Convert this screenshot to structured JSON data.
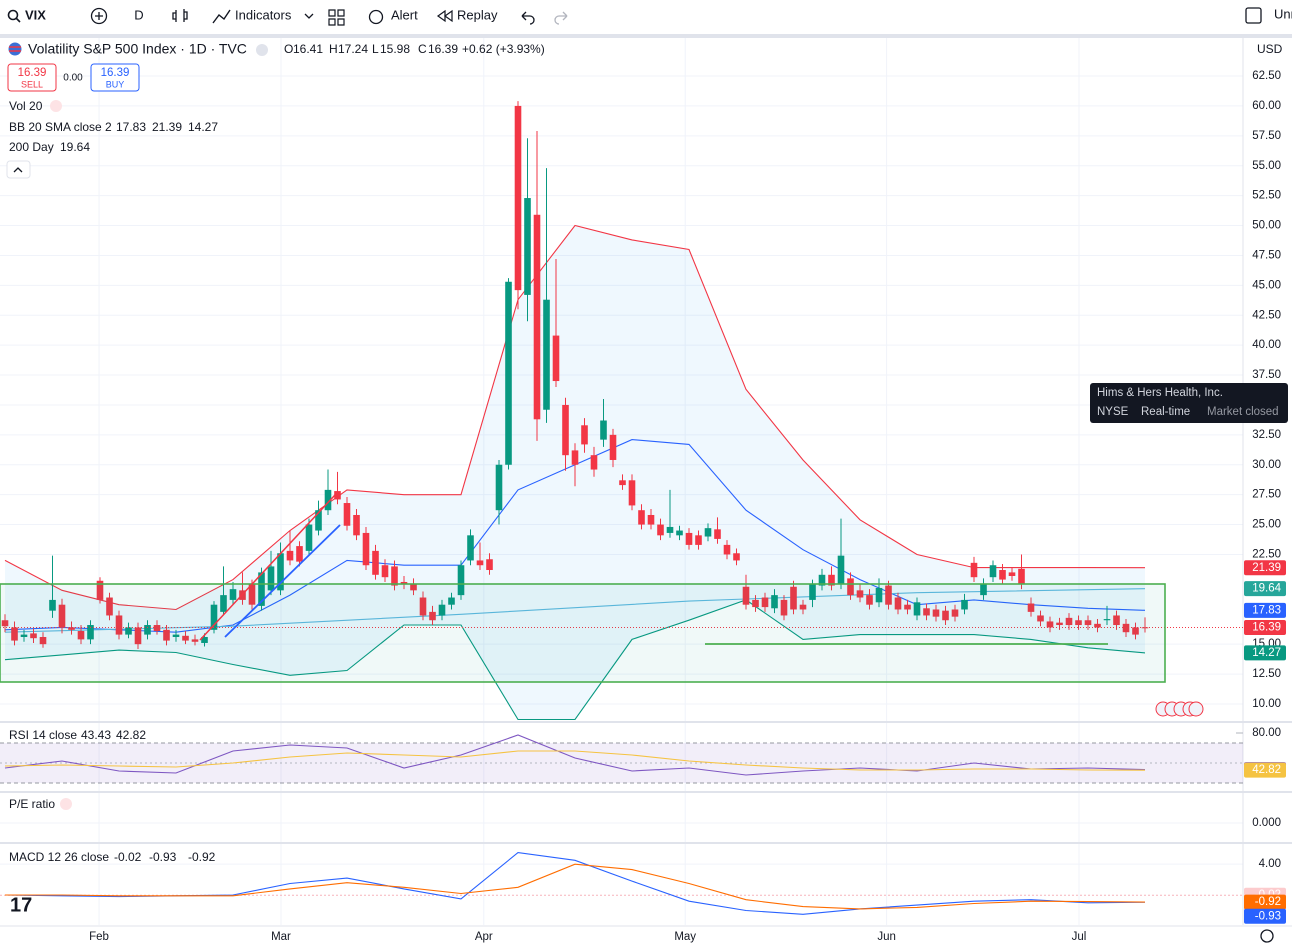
{
  "toolbar": {
    "symbol": "VIX",
    "interval": "D",
    "indicators": "Indicators",
    "alert": "Alert",
    "replay": "Replay",
    "layout": "Unn"
  },
  "legend": {
    "title": "Volatility S&P 500 Index · 1D · TVC",
    "letters": [
      "O",
      "H",
      "L",
      "C"
    ],
    "change": "+0.62 (+3.93%)",
    "sell": "SELL",
    "buy": "BUY",
    "spread": "0.00",
    "vol": "Vol 20",
    "bb": "BB 20 SMA close 2",
    "sma": "200 Day",
    "currency": "USD"
  },
  "tooltip": {
    "name": "Hims & Hers Health, Inc.",
    "exchange": "NYSE",
    "status": "Real-time",
    "market": "Market closed"
  },
  "chart_data": {
    "type": "candlestick",
    "up_color": "#089981",
    "down_color": "#f23645",
    "ohlc": [
      [
        17.0,
        17.5,
        16.0,
        16.5
      ],
      [
        16.4,
        16.9,
        14.9,
        15.3
      ],
      [
        15.6,
        16.2,
        15.2,
        15.8
      ],
      [
        15.9,
        16.3,
        15.1,
        15.5
      ],
      [
        15.6,
        16.0,
        14.7,
        15.0
      ],
      [
        17.8,
        22.4,
        17.2,
        18.7
      ],
      [
        18.3,
        18.8,
        15.9,
        16.4
      ],
      [
        16.4,
        16.9,
        15.8,
        16.2
      ],
      [
        16.1,
        16.6,
        15.0,
        15.4
      ],
      [
        15.4,
        17.0,
        15.0,
        16.6
      ],
      [
        20.3,
        20.6,
        18.4,
        18.7
      ],
      [
        18.9,
        19.3,
        17.0,
        17.4
      ],
      [
        17.4,
        17.8,
        15.4,
        15.8
      ],
      [
        15.8,
        16.8,
        15.5,
        16.4
      ],
      [
        16.4,
        16.8,
        14.6,
        15.0
      ],
      [
        15.8,
        17.0,
        15.4,
        16.6
      ],
      [
        16.6,
        17.0,
        15.8,
        16.1
      ],
      [
        16.2,
        16.6,
        14.9,
        15.3
      ],
      [
        15.6,
        16.2,
        15.2,
        15.8
      ],
      [
        15.7,
        16.1,
        15.0,
        15.3
      ],
      [
        15.4,
        15.8,
        14.9,
        15.2
      ],
      [
        15.1,
        15.9,
        14.8,
        15.6
      ],
      [
        16.2,
        18.6,
        15.9,
        18.3
      ],
      [
        17.7,
        21.5,
        17.4,
        19.1
      ],
      [
        18.7,
        20.2,
        18.3,
        19.6
      ],
      [
        19.5,
        21.0,
        18.3,
        18.7
      ],
      [
        20.0,
        20.4,
        17.9,
        18.3
      ],
      [
        18.2,
        21.4,
        17.8,
        21.0
      ],
      [
        19.5,
        22.8,
        19.1,
        21.5
      ],
      [
        19.5,
        23.5,
        19.1,
        22.6
      ],
      [
        22.8,
        24.5,
        21.6,
        22.0
      ],
      [
        23.2,
        23.6,
        21.5,
        21.9
      ],
      [
        22.8,
        25.5,
        22.4,
        25.0
      ],
      [
        24.5,
        27.0,
        24.1,
        26.2
      ],
      [
        26.2,
        29.6,
        25.8,
        27.9
      ],
      [
        27.8,
        29.4,
        26.7,
        27.1
      ],
      [
        26.8,
        27.3,
        24.5,
        24.9
      ],
      [
        25.8,
        26.3,
        23.7,
        24.1
      ],
      [
        24.3,
        24.8,
        21.2,
        21.6
      ],
      [
        22.8,
        23.3,
        20.4,
        20.8
      ],
      [
        21.6,
        22.1,
        20.2,
        20.6
      ],
      [
        21.5,
        22.0,
        19.5,
        19.9
      ],
      [
        20.2,
        20.7,
        19.6,
        20.0
      ],
      [
        20.0,
        20.5,
        19.1,
        19.5
      ],
      [
        18.9,
        19.4,
        17.0,
        17.4
      ],
      [
        17.7,
        18.2,
        16.6,
        17.0
      ],
      [
        17.4,
        18.7,
        17.0,
        18.3
      ],
      [
        18.3,
        19.3,
        17.9,
        18.9
      ],
      [
        19.1,
        22.0,
        18.7,
        21.6
      ],
      [
        22.0,
        24.6,
        21.6,
        24.1
      ],
      [
        22.0,
        23.5,
        21.2,
        21.6
      ],
      [
        22.1,
        22.6,
        20.8,
        21.2
      ],
      [
        26.2,
        30.4,
        25.0,
        30.0
      ],
      [
        30.0,
        45.6,
        29.6,
        45.3
      ],
      [
        60.0,
        60.4,
        43.0,
        44.6
      ],
      [
        44.2,
        57.3,
        42.0,
        52.3
      ],
      [
        50.9,
        57.9,
        32.0,
        33.8
      ],
      [
        34.6,
        54.8,
        33.5,
        43.8
      ],
      [
        40.8,
        47.2,
        36.5,
        37.0
      ],
      [
        35.0,
        35.6,
        29.5,
        30.8
      ],
      [
        31.2,
        31.8,
        28.2,
        30.0
      ],
      [
        33.3,
        33.9,
        31.0,
        31.7
      ],
      [
        30.8,
        31.5,
        29.0,
        29.6
      ],
      [
        32.1,
        35.5,
        31.5,
        33.7
      ],
      [
        32.5,
        33.0,
        29.8,
        30.4
      ],
      [
        28.7,
        29.2,
        27.9,
        28.3
      ],
      [
        28.7,
        29.2,
        26.2,
        26.6
      ],
      [
        26.2,
        26.7,
        24.6,
        25.0
      ],
      [
        25.8,
        26.3,
        24.6,
        25.0
      ],
      [
        25.0,
        25.5,
        23.7,
        24.1
      ],
      [
        24.3,
        27.9,
        23.9,
        24.8
      ],
      [
        24.1,
        24.9,
        23.7,
        24.5
      ],
      [
        24.3,
        24.7,
        22.9,
        23.3
      ],
      [
        24.1,
        24.5,
        22.9,
        23.3
      ],
      [
        24.0,
        25.1,
        23.6,
        24.7
      ],
      [
        24.6,
        25.6,
        23.4,
        23.8
      ],
      [
        23.3,
        23.7,
        22.1,
        22.5
      ],
      [
        22.6,
        23.0,
        21.6,
        22.0
      ],
      [
        19.8,
        20.8,
        17.9,
        18.3
      ],
      [
        18.7,
        19.1,
        17.7,
        18.1
      ],
      [
        18.9,
        19.3,
        17.7,
        18.1
      ],
      [
        18.0,
        19.6,
        17.6,
        19.1
      ],
      [
        18.7,
        19.1,
        17.0,
        17.4
      ],
      [
        19.8,
        20.3,
        17.5,
        17.9
      ],
      [
        18.3,
        18.7,
        17.5,
        17.9
      ],
      [
        18.7,
        20.4,
        18.1,
        20.0
      ],
      [
        19.9,
        21.3,
        19.5,
        20.8
      ],
      [
        20.8,
        21.5,
        19.5,
        19.9
      ],
      [
        20.0,
        25.5,
        19.6,
        22.4
      ],
      [
        20.5,
        21.0,
        18.7,
        19.1
      ],
      [
        19.5,
        20.0,
        18.5,
        18.9
      ],
      [
        19.1,
        19.6,
        17.9,
        18.3
      ],
      [
        18.5,
        20.5,
        18.1,
        19.7
      ],
      [
        19.9,
        20.3,
        17.9,
        18.3
      ],
      [
        18.9,
        19.3,
        17.5,
        17.9
      ],
      [
        18.3,
        18.7,
        17.5,
        17.9
      ],
      [
        17.4,
        18.9,
        17.0,
        18.5
      ],
      [
        18.0,
        18.4,
        17.0,
        17.4
      ],
      [
        17.9,
        18.3,
        16.9,
        17.3
      ],
      [
        17.8,
        18.2,
        16.6,
        17.0
      ],
      [
        17.9,
        18.3,
        16.9,
        17.3
      ],
      [
        17.9,
        19.2,
        17.5,
        18.7
      ],
      [
        21.8,
        22.3,
        20.2,
        20.6
      ],
      [
        19.1,
        20.5,
        18.7,
        20.0
      ],
      [
        20.6,
        22.0,
        20.2,
        21.6
      ],
      [
        21.2,
        21.7,
        20.0,
        20.4
      ],
      [
        21.0,
        21.4,
        20.3,
        20.7
      ],
      [
        21.3,
        22.5,
        19.6,
        20.0
      ],
      [
        18.4,
        18.9,
        17.3,
        17.7
      ],
      [
        17.4,
        17.8,
        16.5,
        16.9
      ],
      [
        16.9,
        17.3,
        16.0,
        16.4
      ],
      [
        16.8,
        17.2,
        16.2,
        16.6
      ],
      [
        17.2,
        17.6,
        16.2,
        16.6
      ],
      [
        17.0,
        17.4,
        16.2,
        16.6
      ],
      [
        17.0,
        17.4,
        16.2,
        16.6
      ],
      [
        16.7,
        17.1,
        16.0,
        16.4
      ],
      [
        17.0,
        18.2,
        16.6,
        17.1
      ],
      [
        17.4,
        17.8,
        16.2,
        16.6
      ],
      [
        16.7,
        17.1,
        15.6,
        16.0
      ],
      [
        16.4,
        16.8,
        15.4,
        15.8
      ],
      [
        16.41,
        17.24,
        15.98,
        16.39
      ]
    ],
    "ylim": [
      8.66,
      65.68
    ],
    "yticks": [
      {
        "value": 62.5,
        "label": "62.50"
      },
      {
        "value": 60,
        "label": "60.00"
      },
      {
        "value": 57.5,
        "label": "57.50"
      },
      {
        "value": 55,
        "label": "55.00"
      },
      {
        "value": 52.5,
        "label": "52.50"
      },
      {
        "value": 50,
        "label": "50.00"
      },
      {
        "value": 47.5,
        "label": "47.50"
      },
      {
        "value": 45,
        "label": "45.00"
      },
      {
        "value": 42.5,
        "label": "42.50"
      },
      {
        "value": 40,
        "label": "40.00"
      },
      {
        "value": 37.5,
        "label": "37.50"
      },
      {
        "value": 35,
        "label": "35.00"
      },
      {
        "value": 32.5,
        "label": "32.50"
      },
      {
        "value": 30,
        "label": "30.00"
      },
      {
        "value": 27.5,
        "label": "27.50"
      },
      {
        "value": 25,
        "label": "25.00"
      },
      {
        "value": 22.5,
        "label": "22.50"
      },
      {
        "value": 15,
        "label": "15.00"
      },
      {
        "value": 12.5,
        "label": "12.50"
      },
      {
        "value": 10,
        "label": "10.00"
      }
    ],
    "xticks": [
      {
        "value": 9.9,
        "label": "Feb"
      },
      {
        "value": 29.05,
        "label": "Mar"
      },
      {
        "value": 50.4,
        "label": "Apr"
      },
      {
        "value": 71.6,
        "label": "May"
      },
      {
        "value": 92.8,
        "label": "Jun"
      },
      {
        "value": 113.05,
        "label": "Jul"
      }
    ],
    "grid": true,
    "overlays": [
      {
        "color": "#f23645",
        "x": [
          0,
          6,
          12,
          18,
          24,
          30,
          36,
          42,
          48,
          54,
          60,
          66,
          72,
          78,
          84,
          90,
          96,
          102,
          108,
          114,
          120
        ],
        "values": [
          22.0,
          19.5,
          18.3,
          17.9,
          20.4,
          24.5,
          27.9,
          27.5,
          27.5,
          43.8,
          50.0,
          48.8,
          48.0,
          36.3,
          30.4,
          25.4,
          22.5,
          21.4,
          21.4,
          21.4,
          21.39
        ]
      },
      {
        "color": "#2962ff",
        "x": [
          0,
          6,
          12,
          18,
          24,
          30,
          36,
          42,
          48,
          54,
          60,
          66,
          72,
          78,
          84,
          90,
          96,
          102,
          108,
          114,
          120
        ],
        "values": [
          16.2,
          16.4,
          16.2,
          16.0,
          16.6,
          19.1,
          22.0,
          21.6,
          21.6,
          27.9,
          30.0,
          32.1,
          31.7,
          26.2,
          22.9,
          20.4,
          18.3,
          18.7,
          18.3,
          18.0,
          17.83
        ]
      },
      {
        "color": "#089981",
        "x": [
          0,
          6,
          12,
          18,
          24,
          30,
          36,
          42,
          48,
          54,
          60,
          66,
          72,
          78,
          84,
          90,
          96,
          102,
          108,
          114,
          120
        ],
        "values": [
          13.7,
          14.1,
          14.5,
          14.3,
          13.3,
          12.4,
          12.8,
          16.6,
          16.6,
          8.7,
          8.7,
          15.4,
          17.0,
          18.7,
          15.4,
          15.8,
          15.8,
          15.8,
          15.4,
          14.7,
          14.27
        ]
      },
      {
        "color": "#5fb8e0",
        "x": [
          0,
          24,
          48,
          72,
          96,
          120
        ],
        "values": [
          16.0,
          16.5,
          17.5,
          18.6,
          19.3,
          19.64
        ]
      }
    ]
  },
  "rsi": {
    "title": "RSI 14 close",
    "ylim": [
      23,
      91
    ],
    "yticks": [
      {
        "value": 80,
        "label": "80.00"
      }
    ],
    "series": [
      {
        "color": "#7e57c2",
        "x": [
          0,
          6,
          12,
          18,
          24,
          30,
          36,
          42,
          48,
          54,
          60,
          66,
          72,
          78,
          84,
          90,
          96,
          102,
          108,
          114,
          120
        ],
        "values": [
          45,
          52,
          42,
          40,
          62,
          68,
          65,
          45,
          58,
          78,
          55,
          42,
          45,
          38,
          42,
          45,
          42,
          50,
          44,
          45,
          43.43
        ]
      },
      {
        "color": "#f5c342",
        "x": [
          0,
          6,
          12,
          18,
          24,
          30,
          36,
          42,
          48,
          54,
          60,
          66,
          72,
          78,
          84,
          90,
          96,
          102,
          108,
          114,
          120
        ],
        "values": [
          47,
          48,
          47,
          46,
          50,
          56,
          60,
          58,
          56,
          62,
          62,
          58,
          52,
          48,
          45,
          43,
          43,
          44,
          44,
          43,
          42.82
        ]
      }
    ]
  },
  "pe": {
    "title": "P/E ratio",
    "yticks": [
      {
        "value": 0,
        "label": "0.000"
      }
    ]
  },
  "macd": {
    "title": "MACD 12 26 close",
    "histogram": -0.02,
    "ylim": [
      -3.88,
      6.48
    ],
    "yticks": [
      {
        "value": 4,
        "label": "4.00"
      }
    ],
    "series": [
      {
        "color": "#2962ff",
        "x": [
          0,
          6,
          12,
          18,
          24,
          30,
          36,
          42,
          48,
          54,
          60,
          66,
          72,
          78,
          84,
          90,
          96,
          102,
          108,
          114,
          120
        ],
        "values": [
          0,
          -0.1,
          -0.2,
          -0.1,
          0,
          1.5,
          2.2,
          0.8,
          -0.5,
          5.5,
          4.5,
          1.8,
          -0.8,
          -2.0,
          -2.5,
          -1.8,
          -1.3,
          -0.8,
          -0.6,
          -1.0,
          -0.93
        ]
      },
      {
        "color": "#ff6d00",
        "x": [
          0,
          6,
          12,
          18,
          24,
          30,
          36,
          42,
          48,
          54,
          60,
          66,
          72,
          78,
          84,
          90,
          96,
          102,
          108,
          114,
          120
        ],
        "values": [
          0,
          0,
          -0.1,
          -0.1,
          -0.1,
          0.8,
          1.6,
          1.0,
          0.2,
          1.0,
          4.0,
          3.3,
          1.5,
          -0.6,
          -1.5,
          -1.8,
          -1.6,
          -1.1,
          -0.8,
          -0.85,
          -0.92
        ]
      }
    ]
  }
}
